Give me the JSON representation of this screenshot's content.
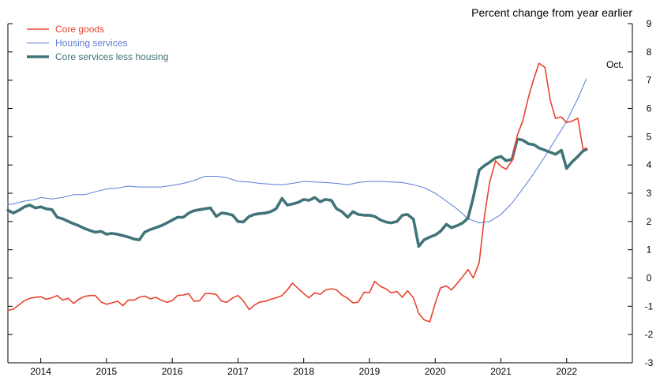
{
  "chart_data": {
    "type": "line",
    "units_label": "Percent change from year earlier",
    "annotation": "Oct.",
    "x_labels": [
      "2014",
      "2015",
      "2016",
      "2017",
      "2018",
      "2019",
      "2020",
      "2021",
      "2022"
    ],
    "y_ticks": [
      "9",
      "8",
      "7",
      "6",
      "5",
      "4",
      "3",
      "2",
      "1",
      "0",
      "-1",
      "-2",
      "-3"
    ],
    "ylim": [
      -3,
      9
    ],
    "xlim": [
      2013.5,
      2023.0
    ],
    "grid": false,
    "legend_position": "top-left",
    "series": [
      {
        "name": "Core goods",
        "color": "#e8432e",
        "width": 1.6,
        "points": [
          [
            2013.5,
            -1.15
          ],
          [
            2013.58,
            -1.1
          ],
          [
            2013.67,
            -0.95
          ],
          [
            2013.75,
            -0.8
          ],
          [
            2013.83,
            -0.72
          ],
          [
            2013.92,
            -0.68
          ],
          [
            2014.0,
            -0.66
          ],
          [
            2014.08,
            -0.75
          ],
          [
            2014.17,
            -0.7
          ],
          [
            2014.25,
            -0.62
          ],
          [
            2014.33,
            -0.78
          ],
          [
            2014.42,
            -0.72
          ],
          [
            2014.5,
            -0.9
          ],
          [
            2014.58,
            -0.75
          ],
          [
            2014.67,
            -0.65
          ],
          [
            2014.75,
            -0.62
          ],
          [
            2014.83,
            -0.62
          ],
          [
            2014.92,
            -0.85
          ],
          [
            2015.0,
            -0.93
          ],
          [
            2015.08,
            -0.88
          ],
          [
            2015.17,
            -0.82
          ],
          [
            2015.25,
            -0.98
          ],
          [
            2015.33,
            -0.78
          ],
          [
            2015.42,
            -0.78
          ],
          [
            2015.5,
            -0.68
          ],
          [
            2015.58,
            -0.64
          ],
          [
            2015.67,
            -0.74
          ],
          [
            2015.75,
            -0.68
          ],
          [
            2015.83,
            -0.78
          ],
          [
            2015.92,
            -0.86
          ],
          [
            2016.0,
            -0.8
          ],
          [
            2016.08,
            -0.62
          ],
          [
            2016.17,
            -0.6
          ],
          [
            2016.25,
            -0.55
          ],
          [
            2016.33,
            -0.82
          ],
          [
            2016.42,
            -0.8
          ],
          [
            2016.5,
            -0.55
          ],
          [
            2016.58,
            -0.55
          ],
          [
            2016.67,
            -0.58
          ],
          [
            2016.75,
            -0.82
          ],
          [
            2016.83,
            -0.86
          ],
          [
            2016.92,
            -0.7
          ],
          [
            2017.0,
            -0.62
          ],
          [
            2017.08,
            -0.8
          ],
          [
            2017.17,
            -1.12
          ],
          [
            2017.25,
            -0.96
          ],
          [
            2017.33,
            -0.85
          ],
          [
            2017.42,
            -0.82
          ],
          [
            2017.5,
            -0.75
          ],
          [
            2017.58,
            -0.7
          ],
          [
            2017.67,
            -0.62
          ],
          [
            2017.75,
            -0.42
          ],
          [
            2017.83,
            -0.18
          ],
          [
            2017.92,
            -0.38
          ],
          [
            2018.0,
            -0.55
          ],
          [
            2018.08,
            -0.7
          ],
          [
            2018.17,
            -0.52
          ],
          [
            2018.25,
            -0.58
          ],
          [
            2018.33,
            -0.42
          ],
          [
            2018.42,
            -0.38
          ],
          [
            2018.5,
            -0.42
          ],
          [
            2018.58,
            -0.6
          ],
          [
            2018.67,
            -0.72
          ],
          [
            2018.75,
            -0.88
          ],
          [
            2018.83,
            -0.85
          ],
          [
            2018.92,
            -0.5
          ],
          [
            2019.0,
            -0.52
          ],
          [
            2019.08,
            -0.12
          ],
          [
            2019.17,
            -0.3
          ],
          [
            2019.25,
            -0.38
          ],
          [
            2019.33,
            -0.52
          ],
          [
            2019.42,
            -0.48
          ],
          [
            2019.5,
            -0.68
          ],
          [
            2019.58,
            -0.45
          ],
          [
            2019.67,
            -0.7
          ],
          [
            2019.75,
            -1.25
          ],
          [
            2019.83,
            -1.48
          ],
          [
            2019.92,
            -1.55
          ],
          [
            2020.0,
            -0.9
          ],
          [
            2020.08,
            -0.35
          ],
          [
            2020.17,
            -0.28
          ],
          [
            2020.25,
            -0.42
          ],
          [
            2020.33,
            -0.2
          ],
          [
            2020.42,
            0.05
          ],
          [
            2020.5,
            0.3
          ],
          [
            2020.58,
            0.0
          ],
          [
            2020.67,
            0.55
          ],
          [
            2020.75,
            2.2
          ],
          [
            2020.83,
            3.4
          ],
          [
            2020.92,
            4.15
          ],
          [
            2021.0,
            3.95
          ],
          [
            2021.08,
            3.85
          ],
          [
            2021.17,
            4.15
          ],
          [
            2021.25,
            5.05
          ],
          [
            2021.33,
            5.55
          ],
          [
            2021.42,
            6.4
          ],
          [
            2021.5,
            7.05
          ],
          [
            2021.58,
            7.6
          ],
          [
            2021.67,
            7.45
          ],
          [
            2021.75,
            6.3
          ],
          [
            2021.83,
            5.65
          ],
          [
            2021.92,
            5.7
          ],
          [
            2022.0,
            5.5
          ],
          [
            2022.08,
            5.55
          ],
          [
            2022.17,
            5.65
          ],
          [
            2022.25,
            4.55
          ],
          [
            2022.3,
            4.6
          ]
        ]
      },
      {
        "name": "Housing services",
        "color": "#5a7bd8",
        "width": 1.0,
        "points": [
          [
            2013.5,
            2.6
          ],
          [
            2013.58,
            2.62
          ],
          [
            2013.67,
            2.68
          ],
          [
            2013.75,
            2.72
          ],
          [
            2013.83,
            2.75
          ],
          [
            2013.92,
            2.78
          ],
          [
            2014.0,
            2.85
          ],
          [
            2014.17,
            2.8
          ],
          [
            2014.33,
            2.85
          ],
          [
            2014.5,
            2.95
          ],
          [
            2014.67,
            2.95
          ],
          [
            2014.83,
            3.05
          ],
          [
            2015.0,
            3.15
          ],
          [
            2015.17,
            3.18
          ],
          [
            2015.33,
            3.25
          ],
          [
            2015.5,
            3.22
          ],
          [
            2015.67,
            3.22
          ],
          [
            2015.83,
            3.22
          ],
          [
            2016.0,
            3.28
          ],
          [
            2016.17,
            3.35
          ],
          [
            2016.33,
            3.45
          ],
          [
            2016.5,
            3.6
          ],
          [
            2016.67,
            3.6
          ],
          [
            2016.83,
            3.55
          ],
          [
            2017.0,
            3.42
          ],
          [
            2017.17,
            3.4
          ],
          [
            2017.33,
            3.35
          ],
          [
            2017.5,
            3.32
          ],
          [
            2017.67,
            3.3
          ],
          [
            2017.83,
            3.35
          ],
          [
            2018.0,
            3.42
          ],
          [
            2018.17,
            3.4
          ],
          [
            2018.33,
            3.38
          ],
          [
            2018.5,
            3.35
          ],
          [
            2018.67,
            3.3
          ],
          [
            2018.83,
            3.38
          ],
          [
            2019.0,
            3.42
          ],
          [
            2019.17,
            3.42
          ],
          [
            2019.33,
            3.4
          ],
          [
            2019.5,
            3.38
          ],
          [
            2019.67,
            3.3
          ],
          [
            2019.83,
            3.2
          ],
          [
            2020.0,
            3.0
          ],
          [
            2020.17,
            2.72
          ],
          [
            2020.33,
            2.45
          ],
          [
            2020.5,
            2.1
          ],
          [
            2020.67,
            1.95
          ],
          [
            2020.83,
            2.0
          ],
          [
            2021.0,
            2.25
          ],
          [
            2021.17,
            2.65
          ],
          [
            2021.33,
            3.15
          ],
          [
            2021.5,
            3.7
          ],
          [
            2021.67,
            4.3
          ],
          [
            2021.83,
            4.9
          ],
          [
            2022.0,
            5.55
          ],
          [
            2022.17,
            6.35
          ],
          [
            2022.3,
            7.05
          ]
        ]
      },
      {
        "name": "Core services less housing",
        "color": "#417478",
        "width": 3.6,
        "points": [
          [
            2013.5,
            2.4
          ],
          [
            2013.58,
            2.3
          ],
          [
            2013.67,
            2.4
          ],
          [
            2013.75,
            2.52
          ],
          [
            2013.83,
            2.58
          ],
          [
            2013.92,
            2.48
          ],
          [
            2014.0,
            2.52
          ],
          [
            2014.08,
            2.45
          ],
          [
            2014.17,
            2.42
          ],
          [
            2014.25,
            2.15
          ],
          [
            2014.33,
            2.1
          ],
          [
            2014.42,
            2.0
          ],
          [
            2014.5,
            1.92
          ],
          [
            2014.58,
            1.85
          ],
          [
            2014.67,
            1.75
          ],
          [
            2014.75,
            1.68
          ],
          [
            2014.83,
            1.62
          ],
          [
            2014.92,
            1.65
          ],
          [
            2015.0,
            1.55
          ],
          [
            2015.08,
            1.58
          ],
          [
            2015.17,
            1.55
          ],
          [
            2015.25,
            1.5
          ],
          [
            2015.33,
            1.45
          ],
          [
            2015.42,
            1.38
          ],
          [
            2015.5,
            1.35
          ],
          [
            2015.58,
            1.62
          ],
          [
            2015.67,
            1.72
          ],
          [
            2015.75,
            1.78
          ],
          [
            2015.83,
            1.85
          ],
          [
            2015.92,
            1.95
          ],
          [
            2016.0,
            2.05
          ],
          [
            2016.08,
            2.15
          ],
          [
            2016.17,
            2.15
          ],
          [
            2016.25,
            2.3
          ],
          [
            2016.33,
            2.38
          ],
          [
            2016.42,
            2.42
          ],
          [
            2016.5,
            2.45
          ],
          [
            2016.58,
            2.48
          ],
          [
            2016.67,
            2.18
          ],
          [
            2016.75,
            2.3
          ],
          [
            2016.83,
            2.28
          ],
          [
            2016.92,
            2.22
          ],
          [
            2017.0,
            2.0
          ],
          [
            2017.08,
            1.98
          ],
          [
            2017.17,
            2.18
          ],
          [
            2017.25,
            2.25
          ],
          [
            2017.33,
            2.28
          ],
          [
            2017.42,
            2.3
          ],
          [
            2017.5,
            2.35
          ],
          [
            2017.58,
            2.45
          ],
          [
            2017.67,
            2.82
          ],
          [
            2017.75,
            2.58
          ],
          [
            2017.83,
            2.62
          ],
          [
            2017.92,
            2.68
          ],
          [
            2018.0,
            2.78
          ],
          [
            2018.08,
            2.75
          ],
          [
            2018.17,
            2.85
          ],
          [
            2018.25,
            2.7
          ],
          [
            2018.33,
            2.78
          ],
          [
            2018.42,
            2.75
          ],
          [
            2018.5,
            2.45
          ],
          [
            2018.58,
            2.35
          ],
          [
            2018.67,
            2.15
          ],
          [
            2018.75,
            2.35
          ],
          [
            2018.83,
            2.25
          ],
          [
            2018.92,
            2.22
          ],
          [
            2019.0,
            2.22
          ],
          [
            2019.08,
            2.18
          ],
          [
            2019.17,
            2.05
          ],
          [
            2019.25,
            1.98
          ],
          [
            2019.33,
            1.95
          ],
          [
            2019.42,
            2.0
          ],
          [
            2019.5,
            2.22
          ],
          [
            2019.58,
            2.25
          ],
          [
            2019.67,
            2.08
          ],
          [
            2019.75,
            1.12
          ],
          [
            2019.83,
            1.35
          ],
          [
            2019.92,
            1.45
          ],
          [
            2020.0,
            1.52
          ],
          [
            2020.08,
            1.65
          ],
          [
            2020.17,
            1.9
          ],
          [
            2020.25,
            1.78
          ],
          [
            2020.33,
            1.85
          ],
          [
            2020.42,
            1.95
          ],
          [
            2020.5,
            2.12
          ],
          [
            2020.58,
            2.85
          ],
          [
            2020.67,
            3.82
          ],
          [
            2020.75,
            3.98
          ],
          [
            2020.83,
            4.1
          ],
          [
            2020.92,
            4.25
          ],
          [
            2021.0,
            4.3
          ],
          [
            2021.08,
            4.15
          ],
          [
            2021.17,
            4.2
          ],
          [
            2021.25,
            4.92
          ],
          [
            2021.33,
            4.88
          ],
          [
            2021.42,
            4.75
          ],
          [
            2021.5,
            4.72
          ],
          [
            2021.58,
            4.6
          ],
          [
            2021.67,
            4.52
          ],
          [
            2021.75,
            4.45
          ],
          [
            2021.83,
            4.38
          ],
          [
            2021.92,
            4.52
          ],
          [
            2022.0,
            3.88
          ],
          [
            2022.08,
            4.1
          ],
          [
            2022.17,
            4.3
          ],
          [
            2022.25,
            4.5
          ],
          [
            2022.3,
            4.55
          ]
        ]
      }
    ]
  }
}
